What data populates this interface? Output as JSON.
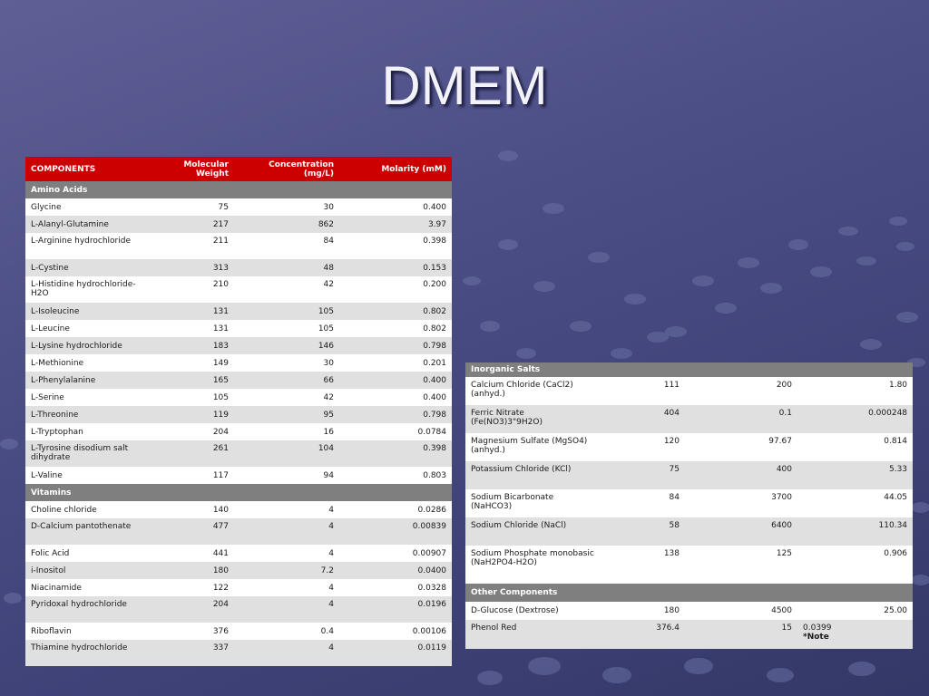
{
  "slide": {
    "title": "DMEM"
  },
  "left_table": {
    "headers": {
      "components": "COMPONENTS",
      "mw": "Molecular Weight",
      "conc": "Concentration (mg/L)",
      "molarity": "Molarity (mM)"
    },
    "amino_acids_label": "Amino Acids",
    "amino_acids": [
      [
        "Glycine",
        "75",
        "30",
        "0.400"
      ],
      [
        "L-Alanyl-Glutamine",
        "217",
        "862",
        "3.97"
      ],
      [
        "L-Arginine hydrochloride",
        "211",
        "84",
        "0.398"
      ],
      [
        "L-Cystine",
        "313",
        "48",
        "0.153"
      ],
      [
        "L-Histidine hydrochloride-H2O",
        "210",
        "42",
        "0.200"
      ],
      [
        "L-Isoleucine",
        "131",
        "105",
        "0.802"
      ],
      [
        "L-Leucine",
        "131",
        "105",
        "0.802"
      ],
      [
        "L-Lysine hydrochloride",
        "183",
        "146",
        "0.798"
      ],
      [
        "L-Methionine",
        "149",
        "30",
        "0.201"
      ],
      [
        "L-Phenylalanine",
        "165",
        "66",
        "0.400"
      ],
      [
        "L-Serine",
        "105",
        "42",
        "0.400"
      ],
      [
        "L-Threonine",
        "119",
        "95",
        "0.798"
      ],
      [
        "L-Tryptophan",
        "204",
        "16",
        "0.0784"
      ],
      [
        "L-Tyrosine disodium salt dihydrate",
        "261",
        "104",
        "0.398"
      ],
      [
        "L-Valine",
        "117",
        "94",
        "0.803"
      ]
    ],
    "vitamins_label": "Vitamins",
    "vitamins": [
      [
        "Choline chloride",
        "140",
        "4",
        "0.0286"
      ],
      [
        "D-Calcium pantothenate",
        "477",
        "4",
        "0.00839"
      ],
      [
        "Folic Acid",
        "441",
        "4",
        "0.00907"
      ],
      [
        "i-Inositol",
        "180",
        "7.2",
        "0.0400"
      ],
      [
        "Niacinamide",
        "122",
        "4",
        "0.0328"
      ],
      [
        "Pyridoxal hydrochloride",
        "204",
        "4",
        "0.0196"
      ],
      [
        "Riboflavin",
        "376",
        "0.4",
        "0.00106"
      ],
      [
        "Thiamine hydrochloride",
        "337",
        "4",
        "0.0119"
      ]
    ]
  },
  "right_table": {
    "inorganic_label": "Inorganic Salts",
    "inorganic": [
      [
        "Calcium Chloride (CaCl2) (anhyd.)",
        "111",
        "200",
        "1.80"
      ],
      [
        "Ferric Nitrate (Fe(NO3)3\"9H2O)",
        "404",
        "0.1",
        "0.000248"
      ],
      [
        "Magnesium Sulfate (MgSO4) (anhyd.)",
        "120",
        "97.67",
        "0.814"
      ],
      [
        "Potassium Chloride (KCl)",
        "75",
        "400",
        "5.33"
      ],
      [
        "Sodium Bicarbonate (NaHCO3)",
        "84",
        "3700",
        "44.05"
      ],
      [
        "Sodium Chloride (NaCl)",
        "58",
        "6400",
        "110.34"
      ],
      [
        "Sodium Phosphate monobasic (NaH2PO4-H2O)",
        "138",
        "125",
        "0.906"
      ]
    ],
    "other_label": "Other Components",
    "other": [
      [
        "D-Glucose (Dextrose)",
        "180",
        "4500",
        "25.00"
      ],
      [
        "Phenol Red",
        "376.4",
        "15",
        "0.0399"
      ]
    ],
    "phenol_red_note": "*Note"
  }
}
